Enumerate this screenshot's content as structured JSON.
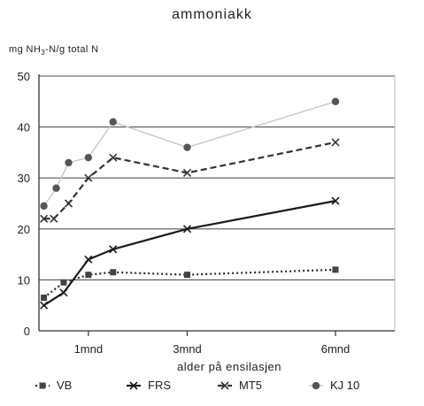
{
  "chart_data": {
    "type": "line",
    "title": "ammoniakk",
    "ylabel_parts": [
      "mg NH",
      "3",
      "-N/g total N"
    ],
    "xlabel": "alder på ensilasjen",
    "ylim": [
      0,
      50
    ],
    "yticks": [
      0,
      10,
      20,
      30,
      40,
      50
    ],
    "xlim": [
      0,
      7.2
    ],
    "xticks": [
      {
        "value": 1,
        "label": "1mnd"
      },
      {
        "value": 3,
        "label": "3mnd"
      },
      {
        "value": 6,
        "label": "6mnd"
      }
    ],
    "grid": "horizontal",
    "legend_position": "bottom",
    "series": [
      {
        "name": "VB",
        "color": "#2a2a2a",
        "dash": "2,3",
        "marker": "square",
        "x": [
          0.1,
          0.5,
          1.0,
          1.5,
          3.0,
          6.0
        ],
        "y": [
          6.5,
          9.5,
          11.0,
          11.5,
          11.0,
          12.0
        ]
      },
      {
        "name": "FRS",
        "color": "#1a1a1a",
        "dash": "",
        "marker": "cross",
        "x": [
          0.1,
          0.5,
          1.0,
          1.5,
          3.0,
          6.0
        ],
        "y": [
          5.0,
          7.5,
          14.0,
          16.0,
          20.0,
          25.5
        ]
      },
      {
        "name": "MT5",
        "color": "#333333",
        "dash": "7,4",
        "marker": "cross",
        "x": [
          0.1,
          0.3,
          0.6,
          1.0,
          1.5,
          3.0,
          6.0
        ],
        "y": [
          22.0,
          22.0,
          25.0,
          30.0,
          34.0,
          31.0,
          37.0
        ]
      },
      {
        "name": "KJ 10",
        "color": "#c4c4c4",
        "dash": "",
        "marker": "dot",
        "x": [
          0.1,
          0.35,
          0.6,
          1.0,
          1.5,
          3.0,
          6.0
        ],
        "y": [
          24.5,
          28.0,
          33.0,
          34.0,
          41.0,
          36.0,
          45.0
        ]
      }
    ]
  }
}
